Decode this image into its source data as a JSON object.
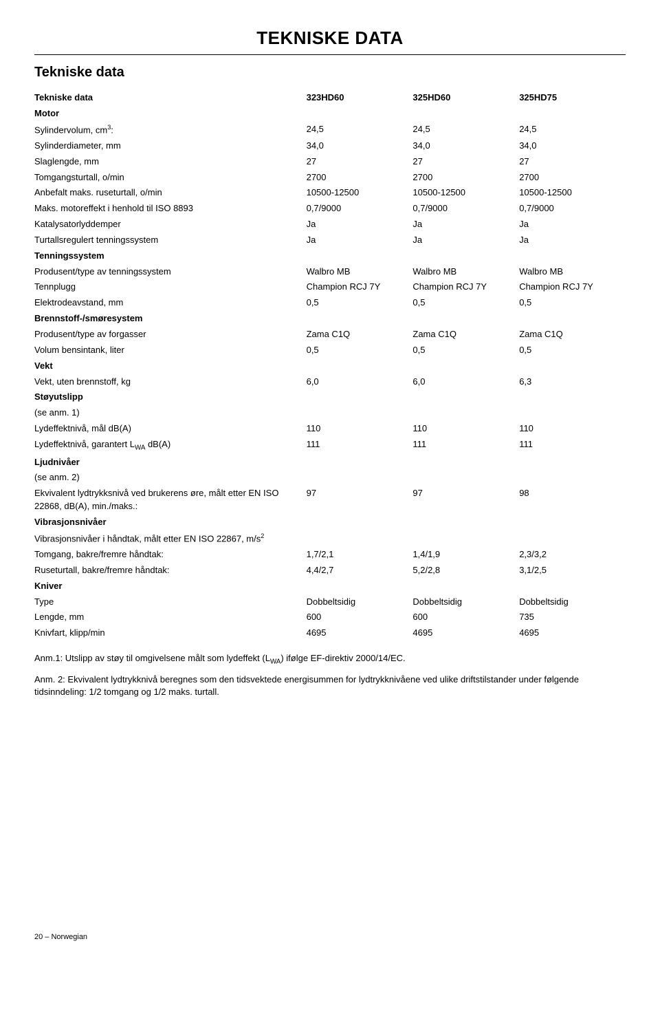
{
  "page_title": "TEKNISKE DATA",
  "section_title": "Tekniske data",
  "header": {
    "label": "Tekniske data",
    "c1": "323HD60",
    "c2": "325HD60",
    "c3": "325HD75"
  },
  "motor_label": "Motor",
  "rows": {
    "sylindervolum": {
      "label": "Sylindervolum, cm",
      "sup": "3",
      "suffix": ":",
      "c1": "24,5",
      "c2": "24,5",
      "c3": "24,5"
    },
    "sylinderdiameter": {
      "label": "Sylinderdiameter, mm",
      "c1": "34,0",
      "c2": "34,0",
      "c3": "34,0"
    },
    "slaglengde": {
      "label": "Slaglengde, mm",
      "c1": "27",
      "c2": "27",
      "c3": "27"
    },
    "tomgang": {
      "label": "Tomgangsturtall, o/min",
      "c1": "2700",
      "c2": "2700",
      "c3": "2700"
    },
    "ruseturtall": {
      "label": "Anbefalt maks. ruseturtall, o/min",
      "c1": "10500-12500",
      "c2": "10500-12500",
      "c3": "10500-12500"
    },
    "motoreffekt": {
      "label": "Maks. motoreffekt i henhold til ISO 8893",
      "c1": "0,7/9000",
      "c2": "0,7/9000",
      "c3": "0,7/9000"
    },
    "katalysator": {
      "label": "Katalysatorlyddemper",
      "c1": "Ja",
      "c2": "Ja",
      "c3": "Ja"
    },
    "turtallsreg": {
      "label": "Turtallsregulert tenningssystem",
      "c1": "Ja",
      "c2": "Ja",
      "c3": "Ja"
    },
    "tenningssystem_label": "Tenningssystem",
    "produsent_tenning": {
      "label": "Produsent/type av tenningssystem",
      "c1": "Walbro MB",
      "c2": "Walbro MB",
      "c3": "Walbro MB"
    },
    "tennplugg": {
      "label": "Tennplugg",
      "c1": "Champion RCJ 7Y",
      "c2": "Champion RCJ 7Y",
      "c3": "Champion RCJ 7Y"
    },
    "elektrode": {
      "label": "Elektrodeavstand, mm",
      "c1": "0,5",
      "c2": "0,5",
      "c3": "0,5"
    },
    "brennstoff_label": "Brennstoff-/smøresystem",
    "forgasser": {
      "label": "Produsent/type av forgasser",
      "c1": "Zama C1Q",
      "c2": "Zama C1Q",
      "c3": "Zama C1Q"
    },
    "volum_bensin": {
      "label": "Volum bensintank, liter",
      "c1": "0,5",
      "c2": "0,5",
      "c3": "0,5"
    },
    "vekt_label": "Vekt",
    "vekt_uten": {
      "label": "Vekt, uten brennstoff, kg",
      "c1": "6,0",
      "c2": "6,0",
      "c3": "6,3"
    },
    "stoyutslipp_label": "Støyutslipp",
    "se_anm1": {
      "label": "(se anm. 1)"
    },
    "lydeffekt_mal": {
      "label": "Lydeffektnivå, mål dB(A)",
      "c1": "110",
      "c2": "110",
      "c3": "110"
    },
    "lydeffekt_gar": {
      "label_pre": "Lydeffektnivå, garantert L",
      "sub": "WA",
      "label_post": " dB(A)",
      "c1": "111",
      "c2": "111",
      "c3": "111"
    },
    "ljudnivaer_label": "Ljudnivåer",
    "se_anm2": {
      "label": "(se anm. 2)"
    },
    "ekvivalent": {
      "label": "Ekvivalent lydtrykksnivå ved brukerens øre, målt etter EN ISO 22868, dB(A), min./maks.:",
      "c1": "97",
      "c2": "97",
      "c3": "98"
    },
    "vibrasjonsnivaer_label": "Vibrasjonsnivåer",
    "vib_handtak": {
      "label_pre": "Vibrasjonsnivåer i håndtak, målt etter EN ISO 22867, m/s",
      "sup": "2"
    },
    "tomgang_bakre": {
      "label": "Tomgang, bakre/fremre håndtak:",
      "c1": "1,7/2,1",
      "c2": "1,4/1,9",
      "c3": "2,3/3,2"
    },
    "ruseturtall_bakre": {
      "label": "Ruseturtall, bakre/fremre håndtak:",
      "c1": "4,4/2,7",
      "c2": "5,2/2,8",
      "c3": "3,1/2,5"
    },
    "kniver_label": "Kniver",
    "type": {
      "label": "Type",
      "c1": "Dobbeltsidig",
      "c2": "Dobbeltsidig",
      "c3": "Dobbeltsidig"
    },
    "lengde": {
      "label": "Lengde, mm",
      "c1": "600",
      "c2": "600",
      "c3": "735"
    },
    "knivfart": {
      "label": "Knivfart, klipp/min",
      "c1": "4695",
      "c2": "4695",
      "c3": "4695"
    }
  },
  "note1_pre": "Anm.1: Utslipp av støy til omgivelsene målt som lydeffekt (L",
  "note1_sub": "WA",
  "note1_post": ") ifølge EF-direktiv 2000/14/EC.",
  "note2": "Anm. 2: Ekvivalent lydtrykknivå beregnes som den tidsvektede energisummen for lydtrykknivåene ved ulike driftstilstander under følgende tidsinndeling: 1/2 tomgang og 1/2 maks. turtall.",
  "footer": "20 – Norwegian"
}
